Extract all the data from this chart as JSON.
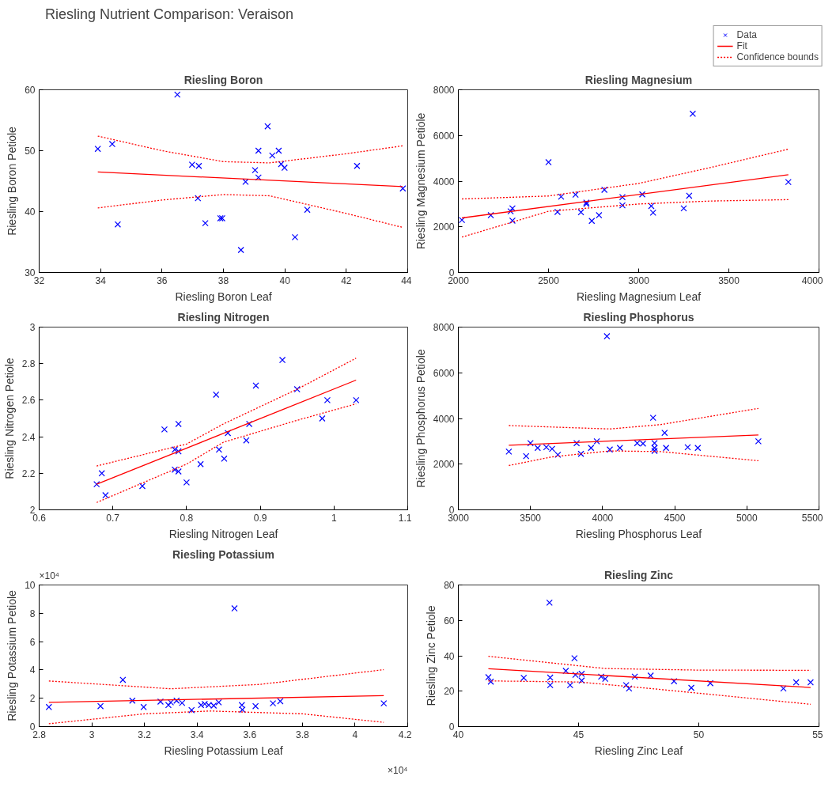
{
  "chart_data": [
    {
      "type": "other",
      "title": "Riesling Nutrient Comparison: Veraison"
    },
    {
      "type": "scatter",
      "title": "Riesling Boron",
      "xlabel": "Riesling Boron Leaf",
      "ylabel": "Riesling Boron Petiole",
      "xlim": [
        32,
        44
      ],
      "xticks": [
        32,
        34,
        36,
        38,
        40,
        42,
        44
      ],
      "ylim": [
        30,
        60
      ],
      "yticks": [
        30,
        40,
        50,
        60
      ],
      "legend": "top right",
      "x": [
        33.91,
        34.38,
        34.56,
        36.5,
        36.98,
        37.2,
        37.17,
        37.41,
        37.9,
        37.96,
        38.57,
        38.72,
        39.03,
        39.14,
        39.14,
        39.44,
        39.59,
        39.8,
        39.88,
        39.99,
        40.33,
        40.73,
        42.35,
        43.84
      ],
      "series": [
        {
          "name": "Data",
          "type": "scatter",
          "marker": "cross",
          "color": "#0000ff",
          "values": [
            50.3,
            51.1,
            37.9,
            59.2,
            47.7,
            47.5,
            42.2,
            38.1,
            38.9,
            38.9,
            33.7,
            44.9,
            46.8,
            45.6,
            50.0,
            54.0,
            49.2,
            50.0,
            47.8,
            47.2,
            35.8,
            40.3,
            47.5,
            43.8
          ]
        },
        {
          "name": "Fit",
          "type": "line",
          "line_style": "solid",
          "color": "#ff0000",
          "x": [
            33.91,
            43.84
          ],
          "values": [
            46.5,
            44.1
          ]
        },
        {
          "name": "Confidence bounds",
          "type": "line",
          "line_style": "dotted",
          "color": "#ff0000",
          "x": [
            33.91,
            36,
            38,
            39.5,
            42,
            43.84
          ],
          "values": [
            52.4,
            50.0,
            48.2,
            48.0,
            49.5,
            50.8
          ]
        },
        {
          "type": "line",
          "line_style": "dotted",
          "color": "#ff0000",
          "x": [
            33.91,
            36,
            38,
            39.5,
            42,
            43.84
          ],
          "values": [
            40.6,
            41.9,
            42.8,
            42.6,
            39.7,
            37.4
          ]
        }
      ]
    },
    {
      "type": "scatter",
      "title": "Riesling Magnesium",
      "xlabel": "Riesling Magnesium Leaf",
      "ylabel": "Riesling Magnesium Petiole",
      "xlim": [
        2000,
        4000
      ],
      "xticks": [
        2000,
        2500,
        3000,
        3500,
        4000
      ],
      "ylim": [
        0,
        8000
      ],
      "yticks": [
        0,
        2000,
        4000,
        6000,
        8000
      ],
      "x": [
        2020,
        2180,
        2290,
        2300,
        2300,
        2500,
        2550,
        2570,
        2650,
        2680,
        2710,
        2710,
        2740,
        2780,
        2810,
        2910,
        2910,
        3020,
        3070,
        3080,
        3250,
        3280,
        3300,
        3830
      ],
      "series": [
        {
          "type": "scatter",
          "marker": "cross",
          "color": "#0000ff",
          "values": [
            2300,
            2510,
            2680,
            2810,
            2270,
            4830,
            2650,
            3320,
            3410,
            2640,
            3060,
            3000,
            2260,
            2510,
            3620,
            2940,
            3300,
            3420,
            2910,
            2620,
            2810,
            3360,
            6950,
            3960
          ]
        },
        {
          "type": "line",
          "line_style": "solid",
          "color": "#ff0000",
          "x": [
            2020,
            3830
          ],
          "values": [
            2390,
            4280
          ]
        },
        {
          "type": "line",
          "line_style": "dotted",
          "color": "#ff0000",
          "x": [
            2020,
            2500,
            3000,
            3400,
            3830
          ],
          "values": [
            3220,
            3350,
            3900,
            4600,
            5400
          ]
        },
        {
          "type": "line",
          "line_style": "dotted",
          "color": "#ff0000",
          "x": [
            2020,
            2500,
            3000,
            3400,
            3830
          ],
          "values": [
            1550,
            2680,
            3000,
            3130,
            3190
          ]
        }
      ]
    },
    {
      "type": "scatter",
      "title": "Riesling Nitrogen",
      "xlabel": "Riesling Nitrogen Leaf",
      "ylabel": "Riesling Nitrogen Petiole",
      "xlim": [
        0.6,
        1.1
      ],
      "xticks": [
        0.6,
        0.7,
        0.8,
        0.9,
        1,
        1.1
      ],
      "ylim": [
        2,
        3
      ],
      "yticks": [
        2,
        2.2,
        2.4,
        2.6,
        2.8,
        3
      ],
      "x": [
        0.678,
        0.685,
        0.69,
        0.74,
        0.77,
        0.789,
        0.784,
        0.789,
        0.784,
        0.789,
        0.8,
        0.819,
        0.84,
        0.844,
        0.851,
        0.856,
        0.881,
        0.885,
        0.894,
        0.93,
        0.95,
        0.984,
        0.991,
        1.03
      ],
      "series": [
        {
          "type": "scatter",
          "marker": "cross",
          "color": "#0000ff",
          "values": [
            2.14,
            2.2,
            2.08,
            2.13,
            2.44,
            2.47,
            2.33,
            2.32,
            2.22,
            2.21,
            2.15,
            2.25,
            2.63,
            2.33,
            2.28,
            2.42,
            2.38,
            2.47,
            2.68,
            2.82,
            2.66,
            2.5,
            2.6,
            2.6
          ]
        },
        {
          "type": "line",
          "line_style": "solid",
          "color": "#ff0000",
          "x": [
            0.678,
            1.03
          ],
          "values": [
            2.14,
            2.71
          ]
        },
        {
          "type": "line",
          "line_style": "dotted",
          "color": "#ff0000",
          "x": [
            0.678,
            0.8,
            0.85,
            0.95,
            1.03
          ],
          "values": [
            2.24,
            2.36,
            2.47,
            2.66,
            2.83
          ]
        },
        {
          "type": "line",
          "line_style": "dotted",
          "color": "#ff0000",
          "x": [
            0.678,
            0.8,
            0.85,
            0.95,
            1.03
          ],
          "values": [
            2.04,
            2.25,
            2.37,
            2.49,
            2.58
          ]
        }
      ]
    },
    {
      "type": "scatter",
      "title": "Riesling Phosphorus",
      "xlabel": "Riesling Phosphorus Leaf",
      "ylabel": "Riesling Phosphorus Petiole",
      "xlim": [
        3000,
        5500
      ],
      "xticks": [
        3000,
        3500,
        4000,
        4500,
        5000,
        5500
      ],
      "ylim": [
        0,
        8000
      ],
      "yticks": [
        0,
        2000,
        4000,
        6000,
        8000
      ],
      "x": [
        3350,
        3470,
        3500,
        3550,
        3610,
        3650,
        3690,
        3820,
        3850,
        3920,
        3960,
        4030,
        4050,
        4120,
        4240,
        4280,
        4350,
        4360,
        4360,
        4360,
        4430,
        4440,
        4590,
        4660,
        5080
      ],
      "series": [
        {
          "type": "scatter",
          "marker": "cross",
          "color": "#0000ff",
          "values": [
            2550,
            2350,
            2920,
            2710,
            2740,
            2670,
            2410,
            2920,
            2450,
            2710,
            3000,
            7600,
            2640,
            2710,
            2920,
            2900,
            4030,
            2920,
            2710,
            2580,
            3370,
            2710,
            2740,
            2710,
            3000
          ]
        },
        {
          "type": "line",
          "line_style": "solid",
          "color": "#ff0000",
          "x": [
            3350,
            5080
          ],
          "values": [
            2830,
            3280
          ]
        },
        {
          "type": "line",
          "line_style": "dotted",
          "color": "#ff0000",
          "x": [
            3350,
            4050,
            4400,
            5080
          ],
          "values": [
            3690,
            3540,
            3730,
            4440
          ]
        },
        {
          "type": "line",
          "line_style": "dotted",
          "color": "#ff0000",
          "x": [
            3350,
            3650,
            4050,
            4400,
            5080
          ],
          "values": [
            1940,
            2320,
            2580,
            2550,
            2150
          ]
        }
      ]
    },
    {
      "type": "scatter",
      "title": "Riesling Potassium",
      "xlabel": "Riesling Potassium Leaf",
      "ylabel": "Riesling Potassium Petiole",
      "annotations": [
        "×10⁴",
        "×10⁴"
      ],
      "xlim": [
        2.8,
        4.2
      ],
      "xticks": [
        2.8,
        3,
        3.2,
        3.4,
        3.6,
        3.8,
        4,
        4.2
      ],
      "ylim": [
        0,
        10
      ],
      "yticks": [
        0,
        2,
        4,
        6,
        8,
        10
      ],
      "x": [
        2.837,
        3.033,
        3.118,
        3.154,
        3.197,
        3.261,
        3.291,
        3.3,
        3.322,
        3.343,
        3.379,
        3.415,
        3.429,
        3.444,
        3.463,
        3.482,
        3.542,
        3.57,
        3.572,
        3.622,
        3.688,
        3.716,
        4.109
      ],
      "series": [
        {
          "type": "scatter",
          "marker": "cross",
          "color": "#0000ff",
          "values": [
            1.38,
            1.44,
            3.3,
            1.83,
            1.38,
            1.76,
            1.52,
            1.71,
            1.83,
            1.67,
            1.16,
            1.52,
            1.6,
            1.52,
            1.48,
            1.71,
            8.35,
            1.52,
            1.19,
            1.44,
            1.64,
            1.79,
            1.64
          ]
        },
        {
          "type": "line",
          "line_style": "solid",
          "color": "#ff0000",
          "x": [
            2.837,
            4.109
          ],
          "values": [
            1.71,
            2.19
          ]
        },
        {
          "type": "line",
          "line_style": "dotted",
          "color": "#ff0000",
          "x": [
            2.837,
            3.3,
            3.64,
            4.109
          ],
          "values": [
            3.22,
            2.67,
            2.98,
            4.02
          ]
        },
        {
          "type": "line",
          "line_style": "dotted",
          "color": "#ff0000",
          "x": [
            2.837,
            3.2,
            3.45,
            3.8,
            4.109
          ],
          "values": [
            0.2,
            0.9,
            1.1,
            0.9,
            0.3
          ]
        }
      ]
    },
    {
      "type": "scatter",
      "title": "Riesling Zinc",
      "xlabel": "Riesling Zinc Leaf",
      "ylabel": "Riesling Zinc Petiole",
      "xlim": [
        40,
        55
      ],
      "xticks": [
        40,
        45,
        50,
        55
      ],
      "ylim": [
        0,
        80
      ],
      "yticks": [
        0,
        20,
        40,
        60,
        80
      ],
      "x": [
        41.25,
        41.35,
        42.72,
        43.79,
        43.82,
        43.82,
        44.47,
        44.65,
        44.83,
        44.87,
        45.13,
        45.13,
        45.94,
        46.11,
        46.98,
        47.1,
        47.34,
        48.0,
        48.97,
        49.69,
        50.48,
        53.52,
        54.05,
        54.65
      ],
      "series": [
        {
          "type": "scatter",
          "marker": "cross",
          "color": "#0000ff",
          "values": [
            27.9,
            25.4,
            27.5,
            70.0,
            27.7,
            23.4,
            31.5,
            23.4,
            38.6,
            29.2,
            29.8,
            26.0,
            28.2,
            27.0,
            23.4,
            21.5,
            28.2,
            28.8,
            25.6,
            21.9,
            24.5,
            21.5,
            25.0,
            25.0
          ]
        },
        {
          "type": "line",
          "line_style": "solid",
          "color": "#ff0000",
          "x": [
            41.25,
            54.65
          ],
          "values": [
            32.7,
            22.1
          ]
        },
        {
          "type": "line",
          "line_style": "dotted",
          "color": "#ff0000",
          "x": [
            41.25,
            46.1,
            50,
            54.65
          ],
          "values": [
            39.7,
            32.8,
            31.9,
            31.8
          ]
        },
        {
          "type": "line",
          "line_style": "dotted",
          "color": "#ff0000",
          "x": [
            41.25,
            45,
            48,
            51,
            54.65
          ],
          "values": [
            25.8,
            25.2,
            21.5,
            17.5,
            12.6
          ]
        }
      ]
    }
  ]
}
